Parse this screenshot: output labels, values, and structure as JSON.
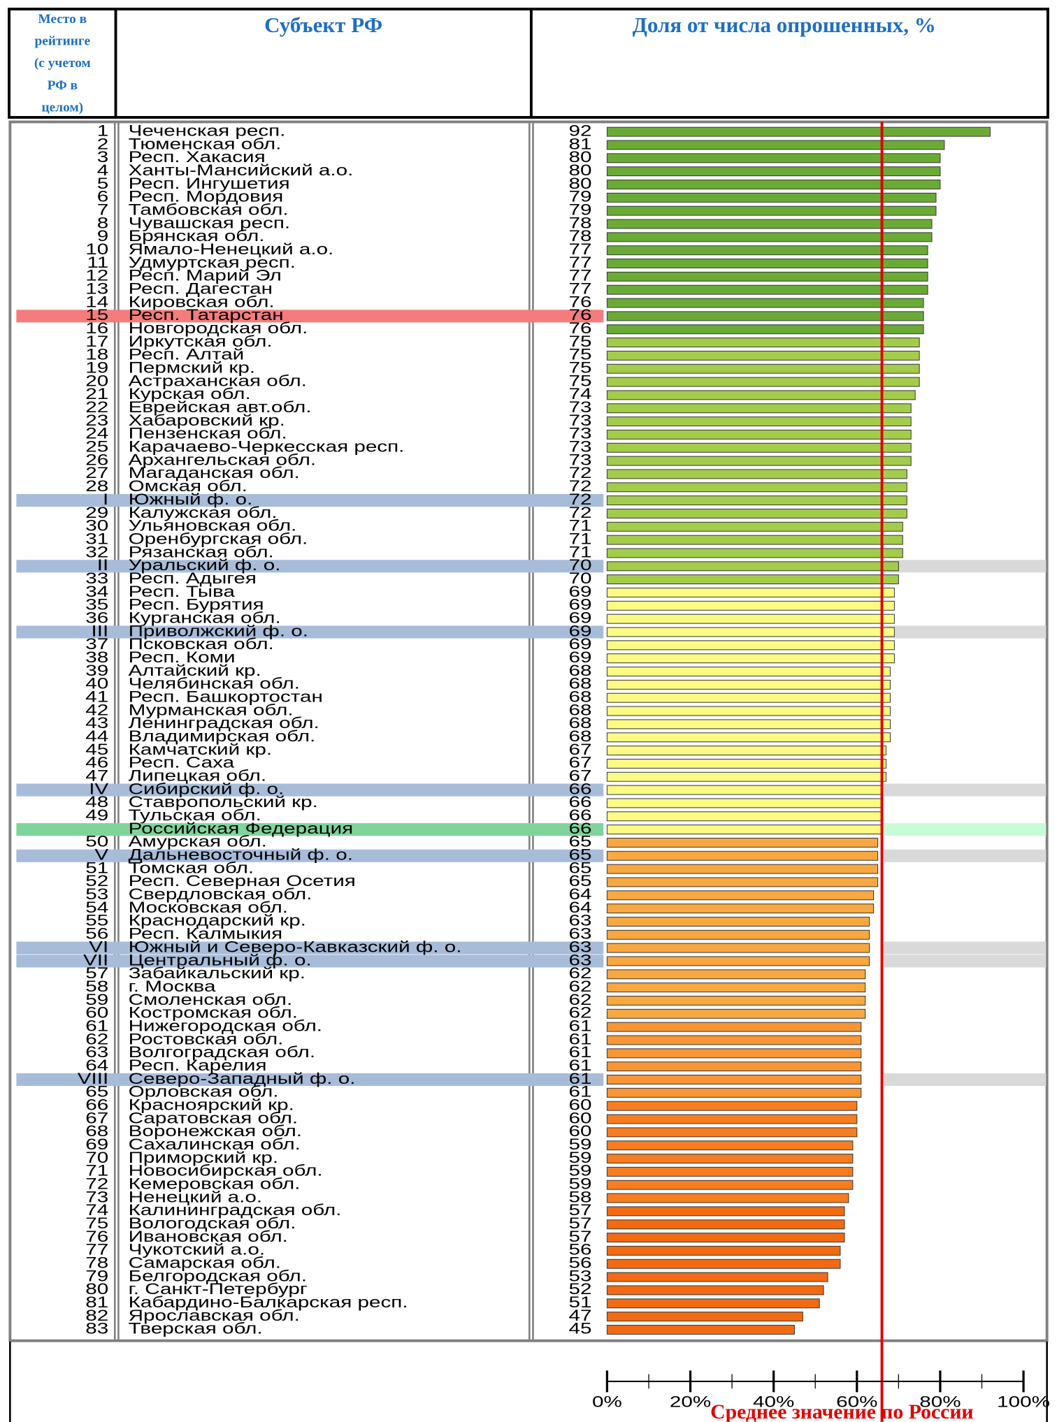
{
  "chart_data": {
    "type": "bar",
    "orientation": "horizontal",
    "headers": {
      "rank_lines": [
        "Место в",
        "рейтинге",
        "(с учетом",
        "РФ в",
        "целом)"
      ],
      "name": "Субъект РФ",
      "value": "Доля от числа опрошенных, %"
    },
    "xlim": [
      0,
      100
    ],
    "xticks": [
      {
        "value": 0,
        "label": "0%"
      },
      {
        "value": 20,
        "label": "20%"
      },
      {
        "value": 40,
        "label": "40%"
      },
      {
        "value": 60,
        "label": "60%"
      },
      {
        "value": 80,
        "label": "80%"
      },
      {
        "value": 100,
        "label": "100%"
      }
    ],
    "xticks_minor": [
      10,
      30,
      50,
      70,
      90
    ],
    "reference_line": {
      "value": 66,
      "label": "Среднее значение по России",
      "color": "#e00000"
    },
    "rows": [
      {
        "rank": 1,
        "name": "Чеченская респ.",
        "value": 92,
        "color": "#6aab35"
      },
      {
        "rank": 2,
        "name": "Тюменская обл.",
        "value": 81,
        "color": "#6aab35"
      },
      {
        "rank": 3,
        "name": "Респ. Хакасия",
        "value": 80,
        "color": "#6aab35"
      },
      {
        "rank": 4,
        "name": "Ханты-Мансийский а.о.",
        "value": 80,
        "color": "#6aab35"
      },
      {
        "rank": 5,
        "name": "Респ. Ингушетия",
        "value": 80,
        "color": "#6aab35"
      },
      {
        "rank": 6,
        "name": "Респ. Мордовия",
        "value": 79,
        "color": "#6aab35"
      },
      {
        "rank": 7,
        "name": "Тамбовская обл.",
        "value": 79,
        "color": "#6aab35"
      },
      {
        "rank": 8,
        "name": "Чувашская респ.",
        "value": 78,
        "color": "#6aab35"
      },
      {
        "rank": 9,
        "name": "Брянская обл.",
        "value": 78,
        "color": "#6aab35"
      },
      {
        "rank": 10,
        "name": "Ямало-Ненецкий а.о.",
        "value": 77,
        "color": "#6aab35"
      },
      {
        "rank": 11,
        "name": "Удмуртская респ.",
        "value": 77,
        "color": "#6aab35"
      },
      {
        "rank": 12,
        "name": "Респ. Марий Эл",
        "value": 77,
        "color": "#6aab35"
      },
      {
        "rank": 13,
        "name": "Респ. Дагестан",
        "value": 77,
        "color": "#6aab35"
      },
      {
        "rank": 14,
        "name": "Кировская обл.",
        "value": 76,
        "color": "#6aab35"
      },
      {
        "rank": 15,
        "name": "Респ. Татарстан",
        "value": 76,
        "color": "#6aab35",
        "highlight": "#f47c7c"
      },
      {
        "rank": 16,
        "name": "Новгородская обл.",
        "value": 76,
        "color": "#6aab35"
      },
      {
        "rank": 17,
        "name": "Иркутская обл.",
        "value": 75,
        "color": "#a3cc4b"
      },
      {
        "rank": 18,
        "name": "Респ. Алтай",
        "value": 75,
        "color": "#a3cc4b"
      },
      {
        "rank": 19,
        "name": "Пермский кр.",
        "value": 75,
        "color": "#a3cc4b"
      },
      {
        "rank": 20,
        "name": "Астраханская обл.",
        "value": 75,
        "color": "#a3cc4b"
      },
      {
        "rank": 21,
        "name": "Курская обл.",
        "value": 74,
        "color": "#a3cc4b"
      },
      {
        "rank": 22,
        "name": "Еврейская авт.обл.",
        "value": 73,
        "color": "#a3cc4b"
      },
      {
        "rank": 23,
        "name": "Хабаровский кр.",
        "value": 73,
        "color": "#a3cc4b"
      },
      {
        "rank": 24,
        "name": "Пензенская обл.",
        "value": 73,
        "color": "#a3cc4b"
      },
      {
        "rank": 25,
        "name": "Карачаево-Черкесская респ.",
        "value": 73,
        "color": "#a3cc4b"
      },
      {
        "rank": 26,
        "name": "Архангельская обл.",
        "value": 73,
        "color": "#a3cc4b"
      },
      {
        "rank": 27,
        "name": "Магаданская обл.",
        "value": 72,
        "color": "#a3cc4b"
      },
      {
        "rank": 28,
        "name": "Омская обл.",
        "value": 72,
        "color": "#a3cc4b"
      },
      {
        "rank": "I",
        "name": "Южный ф. о.",
        "value": 72,
        "color": "#a3cc4b",
        "highlight": "#a7bcd9"
      },
      {
        "rank": 29,
        "name": "Калужская обл.",
        "value": 72,
        "color": "#a3cc4b"
      },
      {
        "rank": 30,
        "name": "Ульяновская обл.",
        "value": 71,
        "color": "#a3cc4b"
      },
      {
        "rank": 31,
        "name": "Оренбургская обл.",
        "value": 71,
        "color": "#a3cc4b"
      },
      {
        "rank": 32,
        "name": "Рязанская обл.",
        "value": 71,
        "color": "#a3cc4b"
      },
      {
        "rank": "II",
        "name": "Уральский ф. о.",
        "value": 70,
        "color": "#a3cc4b",
        "highlight": "#a7bcd9",
        "extension": "#d9d9d9"
      },
      {
        "rank": 33,
        "name": "Респ. Адыгея",
        "value": 70,
        "color": "#a3cc4b"
      },
      {
        "rank": 34,
        "name": "Респ. Тыва",
        "value": 69,
        "color": "#fbfb84"
      },
      {
        "rank": 35,
        "name": "Респ. Бурятия",
        "value": 69,
        "color": "#fbfb84"
      },
      {
        "rank": 36,
        "name": "Курганская обл.",
        "value": 69,
        "color": "#fbfb84"
      },
      {
        "rank": "III",
        "name": "Приволжский ф. о.",
        "value": 69,
        "color": "#fbfb84",
        "highlight": "#a7bcd9",
        "extension": "#d9d9d9"
      },
      {
        "rank": 37,
        "name": "Псковская обл.",
        "value": 69,
        "color": "#fbfb84"
      },
      {
        "rank": 38,
        "name": "Респ. Коми",
        "value": 69,
        "color": "#fbfb84"
      },
      {
        "rank": 39,
        "name": "Алтайский кр.",
        "value": 68,
        "color": "#fbfb84"
      },
      {
        "rank": 40,
        "name": "Челябинская обл.",
        "value": 68,
        "color": "#fbfb84"
      },
      {
        "rank": 41,
        "name": "Респ. Башкортостан",
        "value": 68,
        "color": "#fbfb84"
      },
      {
        "rank": 42,
        "name": "Мурманская обл.",
        "value": 68,
        "color": "#fbfb84"
      },
      {
        "rank": 43,
        "name": "Ленинградская обл.",
        "value": 68,
        "color": "#fbfb84"
      },
      {
        "rank": 44,
        "name": "Владимирская обл.",
        "value": 68,
        "color": "#fbfb84"
      },
      {
        "rank": 45,
        "name": "Камчатский кр.",
        "value": 67,
        "color": "#fbfb84"
      },
      {
        "rank": 46,
        "name": "Респ. Саха",
        "value": 67,
        "color": "#fbfb84"
      },
      {
        "rank": 47,
        "name": "Липецкая обл.",
        "value": 67,
        "color": "#fbfb84"
      },
      {
        "rank": "IV",
        "name": "Сибирский ф. о.",
        "value": 66,
        "color": "#fbfb84",
        "highlight": "#a7bcd9",
        "extension": "#d9d9d9"
      },
      {
        "rank": 48,
        "name": "Ставропольский кр.",
        "value": 66,
        "color": "#fbfb84"
      },
      {
        "rank": 49,
        "name": "Тульская обл.",
        "value": 66,
        "color": "#fbfb84"
      },
      {
        "rank": null,
        "name": "Российская Федерация",
        "value": 66,
        "color": "#fbfb84",
        "highlight": "#7fd49b",
        "extension": "#c8fbd8"
      },
      {
        "rank": 50,
        "name": "Амурская обл.",
        "value": 65,
        "color": "#f8a840"
      },
      {
        "rank": "V",
        "name": "Дальневосточный ф. о.",
        "value": 65,
        "color": "#f8a840",
        "highlight": "#a7bcd9",
        "extension": "#d9d9d9"
      },
      {
        "rank": 51,
        "name": "Томская обл.",
        "value": 65,
        "color": "#f8a840"
      },
      {
        "rank": 52,
        "name": "Респ. Северная Осетия",
        "value": 65,
        "color": "#f8a840"
      },
      {
        "rank": 53,
        "name": "Свердловская обл.",
        "value": 64,
        "color": "#f8a840"
      },
      {
        "rank": 54,
        "name": "Московская обл.",
        "value": 64,
        "color": "#f8a840"
      },
      {
        "rank": 55,
        "name": "Краснодарский кр.",
        "value": 63,
        "color": "#f8a840"
      },
      {
        "rank": 56,
        "name": "Респ. Калмыкия",
        "value": 63,
        "color": "#f8a840"
      },
      {
        "rank": "VI",
        "name": "Южный и Северо-Кавказский ф. о.",
        "value": 63,
        "color": "#f8a840",
        "highlight": "#a7bcd9",
        "extension": "#d9d9d9"
      },
      {
        "rank": "VII",
        "name": "Центральный ф. о.",
        "value": 63,
        "color": "#f8a840",
        "highlight": "#a7bcd9",
        "extension": "#d9d9d9"
      },
      {
        "rank": 57,
        "name": "Забайкальский кр.",
        "value": 62,
        "color": "#f8a840"
      },
      {
        "rank": 58,
        "name": "г. Москва",
        "value": 62,
        "color": "#f8a840"
      },
      {
        "rank": 59,
        "name": "Смоленская обл.",
        "value": 62,
        "color": "#f8a840"
      },
      {
        "rank": 60,
        "name": "Костромская обл.",
        "value": 62,
        "color": "#f8a840"
      },
      {
        "rank": 61,
        "name": "Нижегородская обл.",
        "value": 61,
        "color": "#f89535"
      },
      {
        "rank": 62,
        "name": "Ростовская обл.",
        "value": 61,
        "color": "#f89535"
      },
      {
        "rank": 63,
        "name": "Волгоградская обл.",
        "value": 61,
        "color": "#f89535"
      },
      {
        "rank": 64,
        "name": "Респ. Карелия",
        "value": 61,
        "color": "#f89535"
      },
      {
        "rank": "VIII",
        "name": "Северо-Западный ф. о.",
        "value": 61,
        "color": "#f89535",
        "highlight": "#a7bcd9",
        "extension": "#d9d9d9"
      },
      {
        "rank": 65,
        "name": "Орловская обл.",
        "value": 61,
        "color": "#f89535"
      },
      {
        "rank": 66,
        "name": "Красноярский кр.",
        "value": 60,
        "color": "#f67d20"
      },
      {
        "rank": 67,
        "name": "Саратовская обл.",
        "value": 60,
        "color": "#f67d20"
      },
      {
        "rank": 68,
        "name": "Воронежская обл.",
        "value": 60,
        "color": "#f67d20"
      },
      {
        "rank": 69,
        "name": "Сахалинская обл.",
        "value": 59,
        "color": "#f67d20"
      },
      {
        "rank": 70,
        "name": "Приморский кр.",
        "value": 59,
        "color": "#f67d20"
      },
      {
        "rank": 71,
        "name": "Новосибирская обл.",
        "value": 59,
        "color": "#f67d20"
      },
      {
        "rank": 72,
        "name": "Кемеровская обл.",
        "value": 59,
        "color": "#f67d20"
      },
      {
        "rank": 73,
        "name": "Ненецкий а.о.",
        "value": 58,
        "color": "#f67d20"
      },
      {
        "rank": 74,
        "name": "Калининградская обл.",
        "value": 57,
        "color": "#f26a12"
      },
      {
        "rank": 75,
        "name": "Вологодская обл.",
        "value": 57,
        "color": "#f26a12"
      },
      {
        "rank": 76,
        "name": "Ивановская обл.",
        "value": 57,
        "color": "#f26a12"
      },
      {
        "rank": 77,
        "name": "Чукотский а.о.",
        "value": 56,
        "color": "#f26a12"
      },
      {
        "rank": 78,
        "name": "Самарская обл.",
        "value": 56,
        "color": "#f26a12"
      },
      {
        "rank": 79,
        "name": "Белгородская обл.",
        "value": 53,
        "color": "#f26a12"
      },
      {
        "rank": 80,
        "name": "г. Санкт-Петербург",
        "value": 52,
        "color": "#f26a12"
      },
      {
        "rank": 81,
        "name": "Кабардино-Балкарская респ.",
        "value": 51,
        "color": "#f26a12"
      },
      {
        "rank": 82,
        "name": "Ярославская обл.",
        "value": 47,
        "color": "#f26a12"
      },
      {
        "rank": 83,
        "name": "Тверская обл.",
        "value": 45,
        "color": "#f26a12"
      }
    ]
  }
}
